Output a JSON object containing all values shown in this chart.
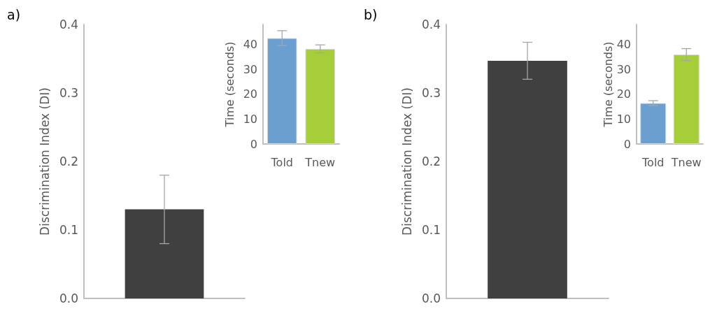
{
  "chart_data": [
    {
      "type": "bar",
      "title": "a)",
      "ylabel": "Discrimination Index (DI)",
      "categories": [
        null
      ],
      "values": [
        0.13
      ],
      "errors": [
        0.05
      ],
      "color": "#404040",
      "ylim": [
        0,
        0.4
      ],
      "yticks": [
        {
          "value": 0,
          "label": "0.0"
        },
        0.1,
        0.2,
        0.3,
        0.4
      ],
      "grid": false
    },
    {
      "type": "bar",
      "ylabel": "Time (seconds)",
      "categories": [
        "Told",
        "Tnew"
      ],
      "values": [
        42.5,
        38.2
      ],
      "errors": [
        3,
        1.6
      ],
      "colors": [
        "#6a9fcf",
        "#a6ce39"
      ],
      "ylim": [
        0,
        48
      ],
      "yticks": [
        0,
        10,
        20,
        30,
        40
      ],
      "grid": false
    },
    {
      "type": "bar",
      "title": "b)",
      "ylabel": "Discrimination Index (DI)",
      "categories": [
        null
      ],
      "values": [
        0.347
      ],
      "errors": [
        0.027
      ],
      "color": "#404040",
      "ylim": [
        0,
        0.4
      ],
      "yticks": [
        {
          "value": 0,
          "label": "0.0"
        },
        0.1,
        0.2,
        0.3,
        0.4
      ],
      "grid": false
    },
    {
      "type": "bar",
      "ylabel": "Time (seconds)",
      "categories": [
        "Told",
        "Tnew"
      ],
      "values": [
        16.4,
        35.9
      ],
      "errors": [
        1,
        2.4
      ],
      "colors": [
        "#6a9fcf",
        "#a6ce39"
      ],
      "ylim": [
        0,
        48
      ],
      "yticks": [
        0,
        10,
        20,
        30,
        40
      ],
      "grid": false
    }
  ]
}
